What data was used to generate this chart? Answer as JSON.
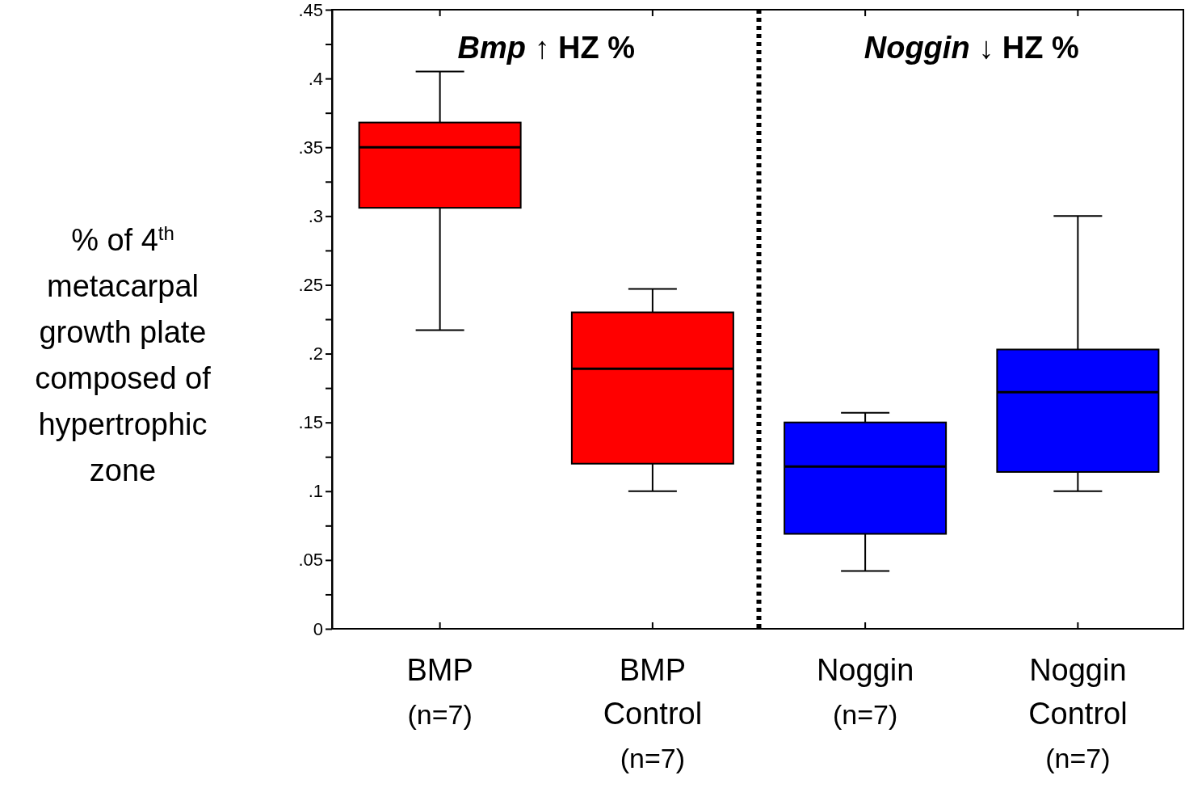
{
  "chart_data": {
    "type": "box",
    "ylabel": "% of 4$^{th}$\nmetacarpal\ngrowth plate\ncomposed of\nhypertrophic\nzone",
    "categories": [
      "BMP\n(n=7)",
      "BMP\nControl\n(n=7)",
      "Noggin\n(n=7)",
      "Noggin\nControl\n(n=7)"
    ],
    "colors": [
      "#ff0000",
      "#ff0000",
      "#0000ff",
      "#0000ff"
    ],
    "boxes": [
      {
        "low": 0.217,
        "q1": 0.306,
        "median": 0.35,
        "q3": 0.368,
        "high": 0.405
      },
      {
        "low": 0.1,
        "q1": 0.12,
        "median": 0.189,
        "q3": 0.23,
        "high": 0.247
      },
      {
        "low": 0.042,
        "q1": 0.069,
        "median": 0.118,
        "q3": 0.15,
        "high": 0.157
      },
      {
        "low": 0.1,
        "q1": 0.114,
        "median": 0.172,
        "q3": 0.203,
        "high": 0.3
      }
    ],
    "ylim": [
      0,
      0.45
    ],
    "yticks": [
      {
        "value": 0,
        "label": "0"
      },
      {
        "value": 0.025,
        "label": null
      },
      {
        "value": 0.05,
        "label": ".05"
      },
      {
        "value": 0.075,
        "label": null
      },
      {
        "value": 0.1,
        "label": ".1"
      },
      {
        "value": 0.125,
        "label": null
      },
      {
        "value": 0.15,
        "label": ".15"
      },
      {
        "value": 0.175,
        "label": null
      },
      {
        "value": 0.2,
        "label": ".2"
      },
      {
        "value": 0.225,
        "label": null
      },
      {
        "value": 0.25,
        "label": ".25"
      },
      {
        "value": 0.275,
        "label": null
      },
      {
        "value": 0.3,
        "label": ".3"
      },
      {
        "value": 0.325,
        "label": null
      },
      {
        "value": 0.35,
        "label": ".35"
      },
      {
        "value": 0.375,
        "label": null
      },
      {
        "value": 0.4,
        "label": ".4"
      },
      {
        "value": 0.425,
        "label": null
      },
      {
        "value": 0.45,
        "label": ".45"
      }
    ],
    "annotations": [
      "Bmp ↑ HZ %",
      "Noggin ↓ HZ %"
    ]
  }
}
